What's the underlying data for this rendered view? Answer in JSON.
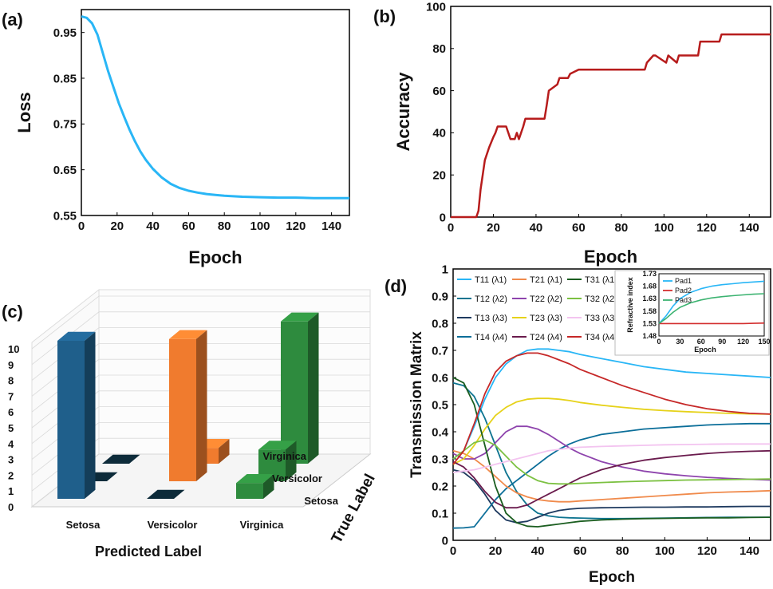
{
  "chart_data": [
    {
      "panel": "(a)",
      "type": "line",
      "title": "",
      "xlabel": "Epoch",
      "ylabel": "Loss",
      "xlim": [
        0,
        150
      ],
      "ylim": [
        0.55,
        1.0
      ],
      "xticks": [
        0,
        20,
        40,
        60,
        80,
        100,
        120,
        140
      ],
      "yticks": [
        0.55,
        0.65,
        0.75,
        0.85,
        0.95
      ],
      "ytick_labels": [
        "0.55",
        "0.65",
        "0.75",
        "0.85",
        "0.95"
      ],
      "color": "#29b6f6",
      "x": [
        0,
        3,
        6,
        9,
        12,
        15,
        18,
        21,
        24,
        27,
        30,
        33,
        36,
        40,
        45,
        50,
        55,
        60,
        65,
        70,
        75,
        80,
        90,
        100,
        110,
        120,
        130,
        140,
        150
      ],
      "y": [
        0.985,
        0.982,
        0.97,
        0.945,
        0.905,
        0.865,
        0.83,
        0.795,
        0.765,
        0.737,
        0.712,
        0.69,
        0.672,
        0.652,
        0.633,
        0.619,
        0.61,
        0.604,
        0.6,
        0.597,
        0.595,
        0.593,
        0.591,
        0.59,
        0.589,
        0.589,
        0.588,
        0.588,
        0.588
      ]
    },
    {
      "panel": "(b)",
      "type": "line",
      "title": "",
      "xlabel": "Epoch",
      "ylabel": "Accuracy",
      "xlim": [
        0,
        150
      ],
      "ylim": [
        0,
        100
      ],
      "xticks": [
        0,
        20,
        40,
        60,
        80,
        100,
        120,
        140
      ],
      "yticks": [
        0,
        20,
        40,
        60,
        80,
        100
      ],
      "color": "#b71c1c",
      "x": [
        0,
        12,
        13,
        14,
        15,
        16,
        18,
        20,
        21,
        22,
        26,
        27,
        28,
        30,
        31,
        32,
        34,
        35,
        44,
        45,
        46,
        50,
        51,
        55,
        56,
        60,
        91,
        92,
        95,
        96,
        101,
        102,
        106,
        107,
        116,
        117,
        126,
        127,
        150
      ],
      "y": [
        0,
        0,
        3,
        13,
        20,
        27,
        33,
        38,
        40,
        43,
        43,
        40,
        37,
        37,
        40,
        37,
        43,
        46.7,
        46.7,
        53,
        60,
        63,
        66,
        66,
        68,
        70,
        70,
        73.3,
        76.7,
        76.7,
        73.3,
        76.7,
        73.3,
        76.7,
        76.7,
        83.3,
        83.3,
        86.7,
        86.7
      ]
    },
    {
      "panel": "(c)",
      "type": "bar",
      "subtype": "3d-confusion-matrix",
      "xlabel": "Predicted Label",
      "ylabel": "True Label",
      "categories": [
        "Setosa",
        "Versicolor",
        "Virginica"
      ],
      "true_labels": [
        "Setosa",
        "Versicolor",
        "Virginica"
      ],
      "zlim": [
        0,
        10
      ],
      "zticks": [
        0,
        1,
        2,
        3,
        4,
        5,
        6,
        7,
        8,
        9,
        10
      ],
      "series": [
        {
          "name": "Setosa",
          "values": [
            10,
            0,
            0
          ],
          "color": "#1f5f8b"
        },
        {
          "name": "Versicolor",
          "values": [
            0,
            9,
            1
          ],
          "color": "#f07b2e"
        },
        {
          "name": "Virginica",
          "values": [
            1,
            2,
            9
          ],
          "color": "#2e8b3e"
        }
      ]
    },
    {
      "panel": "(d)",
      "type": "line",
      "title": "",
      "xlabel": "Epoch",
      "ylabel": "Transmission Matrix",
      "xlim": [
        0,
        150
      ],
      "ylim": [
        0,
        1
      ],
      "xticks": [
        0,
        20,
        40,
        60,
        80,
        100,
        120,
        140
      ],
      "yticks": [
        0,
        0.1,
        0.2,
        0.3,
        0.4,
        0.5,
        0.6,
        0.7,
        0.8,
        0.9,
        1
      ],
      "ytick_labels": [
        "0",
        "0.1",
        "0.2",
        "0.3",
        "0.4",
        "0.5",
        "0.6",
        "0.7",
        "0.8",
        "0.9",
        "1"
      ],
      "x": [
        0,
        5,
        10,
        15,
        20,
        25,
        30,
        35,
        40,
        45,
        50,
        55,
        60,
        70,
        80,
        90,
        100,
        110,
        120,
        130,
        140,
        150
      ],
      "series": [
        {
          "name": "T11 (λ1)",
          "color": "#29b6f6",
          "values": [
            0.3,
            0.33,
            0.42,
            0.52,
            0.6,
            0.65,
            0.68,
            0.7,
            0.705,
            0.705,
            0.7,
            0.695,
            0.685,
            0.67,
            0.655,
            0.64,
            0.63,
            0.62,
            0.615,
            0.61,
            0.605,
            0.6
          ]
        },
        {
          "name": "T12 (λ2)",
          "color": "#0e7490",
          "values": [
            0.58,
            0.57,
            0.53,
            0.45,
            0.35,
            0.25,
            0.18,
            0.13,
            0.1,
            0.09,
            0.085,
            0.083,
            0.082,
            0.08,
            0.08,
            0.081,
            0.082,
            0.083,
            0.084,
            0.085,
            0.085,
            0.085
          ]
        },
        {
          "name": "T13 (λ3)",
          "color": "#1e3a5f",
          "values": [
            0.26,
            0.25,
            0.22,
            0.17,
            0.11,
            0.075,
            0.065,
            0.07,
            0.085,
            0.1,
            0.11,
            0.115,
            0.118,
            0.12,
            0.121,
            0.122,
            0.122,
            0.123,
            0.123,
            0.124,
            0.125,
            0.125
          ]
        },
        {
          "name": "T14 (λ4)",
          "color": "#0b6e99",
          "values": [
            0.045,
            0.046,
            0.05,
            0.1,
            0.15,
            0.19,
            0.22,
            0.25,
            0.28,
            0.31,
            0.335,
            0.355,
            0.37,
            0.39,
            0.4,
            0.41,
            0.415,
            0.42,
            0.425,
            0.428,
            0.43,
            0.43
          ]
        },
        {
          "name": "T21 (λ1)",
          "color": "#f08a4b",
          "values": [
            0.33,
            0.32,
            0.3,
            0.27,
            0.235,
            0.2,
            0.175,
            0.16,
            0.15,
            0.145,
            0.142,
            0.142,
            0.145,
            0.15,
            0.155,
            0.16,
            0.165,
            0.17,
            0.175,
            0.178,
            0.18,
            0.183
          ]
        },
        {
          "name": "T22 (λ2)",
          "color": "#8e44ad",
          "values": [
            0.32,
            0.3,
            0.3,
            0.32,
            0.36,
            0.4,
            0.42,
            0.42,
            0.41,
            0.39,
            0.365,
            0.34,
            0.32,
            0.29,
            0.27,
            0.255,
            0.245,
            0.238,
            0.232,
            0.228,
            0.225,
            0.222
          ]
        },
        {
          "name": "T23 (λ3)",
          "color": "#e6d21a",
          "values": [
            0.28,
            0.3,
            0.35,
            0.41,
            0.46,
            0.49,
            0.51,
            0.52,
            0.523,
            0.523,
            0.52,
            0.515,
            0.508,
            0.498,
            0.49,
            0.483,
            0.478,
            0.474,
            0.471,
            0.468,
            0.466,
            0.465
          ]
        },
        {
          "name": "T24 (λ4)",
          "color": "#6a1b4d",
          "values": [
            0.29,
            0.27,
            0.23,
            0.18,
            0.14,
            0.12,
            0.12,
            0.13,
            0.15,
            0.17,
            0.19,
            0.21,
            0.23,
            0.26,
            0.28,
            0.295,
            0.305,
            0.313,
            0.32,
            0.325,
            0.328,
            0.33
          ]
        },
        {
          "name": "T31 (λ1)",
          "color": "#1b5e20",
          "values": [
            0.6,
            0.58,
            0.5,
            0.35,
            0.2,
            0.1,
            0.065,
            0.052,
            0.05,
            0.055,
            0.06,
            0.065,
            0.07,
            0.075,
            0.078,
            0.08,
            0.081,
            0.082,
            0.083,
            0.083,
            0.084,
            0.085
          ]
        },
        {
          "name": "T32 (λ2)",
          "color": "#7cc142",
          "values": [
            0.3,
            0.33,
            0.36,
            0.37,
            0.35,
            0.31,
            0.27,
            0.24,
            0.22,
            0.21,
            0.208,
            0.208,
            0.21,
            0.213,
            0.216,
            0.218,
            0.22,
            0.222,
            0.223,
            0.224,
            0.225,
            0.226
          ]
        },
        {
          "name": "T33 (λ3)",
          "color": "#f3c4f0",
          "values": [
            0.25,
            0.255,
            0.26,
            0.27,
            0.28,
            0.29,
            0.3,
            0.31,
            0.32,
            0.33,
            0.335,
            0.34,
            0.343,
            0.346,
            0.348,
            0.35,
            0.352,
            0.353,
            0.354,
            0.355,
            0.355,
            0.355
          ]
        },
        {
          "name": "T34 (λ4)",
          "color": "#c62828",
          "values": [
            0.28,
            0.33,
            0.43,
            0.54,
            0.62,
            0.66,
            0.68,
            0.69,
            0.69,
            0.68,
            0.665,
            0.65,
            0.63,
            0.6,
            0.57,
            0.545,
            0.52,
            0.5,
            0.485,
            0.475,
            0.468,
            0.465
          ]
        }
      ],
      "inset": {
        "type": "line",
        "xlabel": "Epoch",
        "ylabel": "Refractive index",
        "xlim": [
          0,
          150
        ],
        "ylim": [
          1.48,
          1.73
        ],
        "xticks": [
          0,
          30,
          60,
          90,
          120,
          150
        ],
        "yticks": [
          1.48,
          1.53,
          1.58,
          1.63,
          1.68,
          1.73
        ],
        "ytick_labels": [
          "1.48",
          "1.53",
          "1.58",
          "1.63",
          "1.68",
          "1.73"
        ],
        "x": [
          0,
          10,
          20,
          30,
          45,
          60,
          75,
          90,
          105,
          120,
          135,
          150
        ],
        "series": [
          {
            "name": "Pad1",
            "color": "#29b6f6",
            "values": [
              1.53,
              1.56,
              1.6,
              1.63,
              1.655,
              1.67,
              1.68,
              1.686,
              1.69,
              1.694,
              1.697,
              1.7
            ]
          },
          {
            "name": "Pad2",
            "color": "#d32f2f",
            "values": [
              1.53,
              1.53,
              1.53,
              1.53,
              1.53,
              1.53,
              1.53,
              1.53,
              1.53,
              1.53,
              1.531,
              1.532
            ]
          },
          {
            "name": "Pad3",
            "color": "#3cb371",
            "values": [
              1.53,
              1.55,
              1.575,
              1.595,
              1.613,
              1.625,
              1.633,
              1.638,
              1.642,
              1.645,
              1.648,
              1.65
            ]
          }
        ]
      }
    }
  ]
}
